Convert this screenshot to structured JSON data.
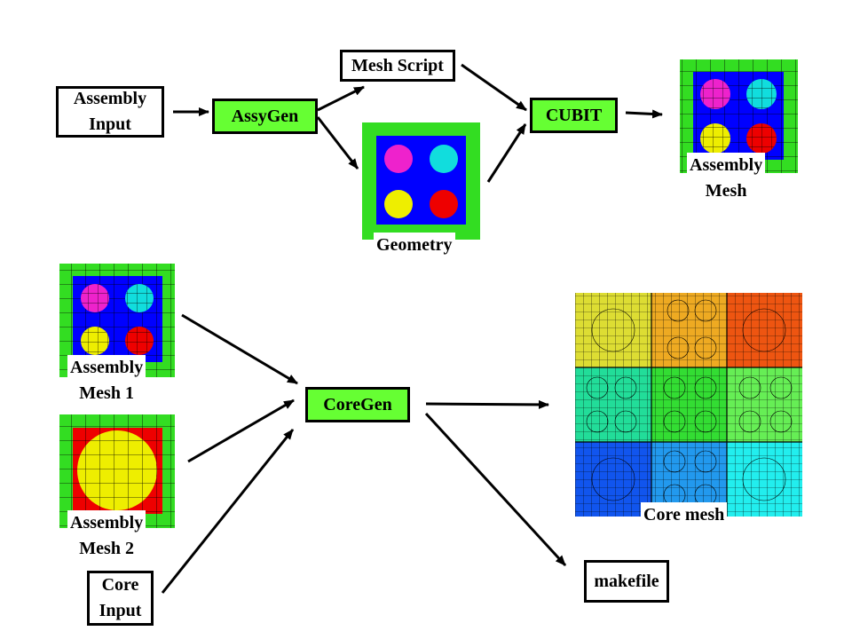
{
  "boxes": {
    "assembly_input": "Assembly\nInput",
    "assygen": "AssyGen",
    "mesh_script": "Mesh Script",
    "cubit": "CUBIT",
    "coregen": "CoreGen",
    "core_input": "Core\nInput",
    "makefile": "makefile"
  },
  "labels": {
    "geometry": "Geometry",
    "assembly_mesh": "Assembly\nMesh",
    "assembly_mesh_1": "Assembly\nMesh 1",
    "assembly_mesh_2": "Assembly\nMesh 2",
    "core_mesh": "Core mesh"
  },
  "colors": {
    "box_green": "#66ff33",
    "duct_green": "#33dd22",
    "coolant_blue": "#0000ff",
    "pin_magenta": "#ee22cc",
    "pin_cyan": "#11dddd",
    "pin_yellow": "#eeee00",
    "pin_red": "#ee0000",
    "core_colors": [
      "#dddd33",
      "#eeaa22",
      "#ee5511",
      "#22dd99",
      "#33dd33",
      "#66ee55",
      "#1155ee",
      "#2299ee",
      "#22eeee"
    ]
  }
}
